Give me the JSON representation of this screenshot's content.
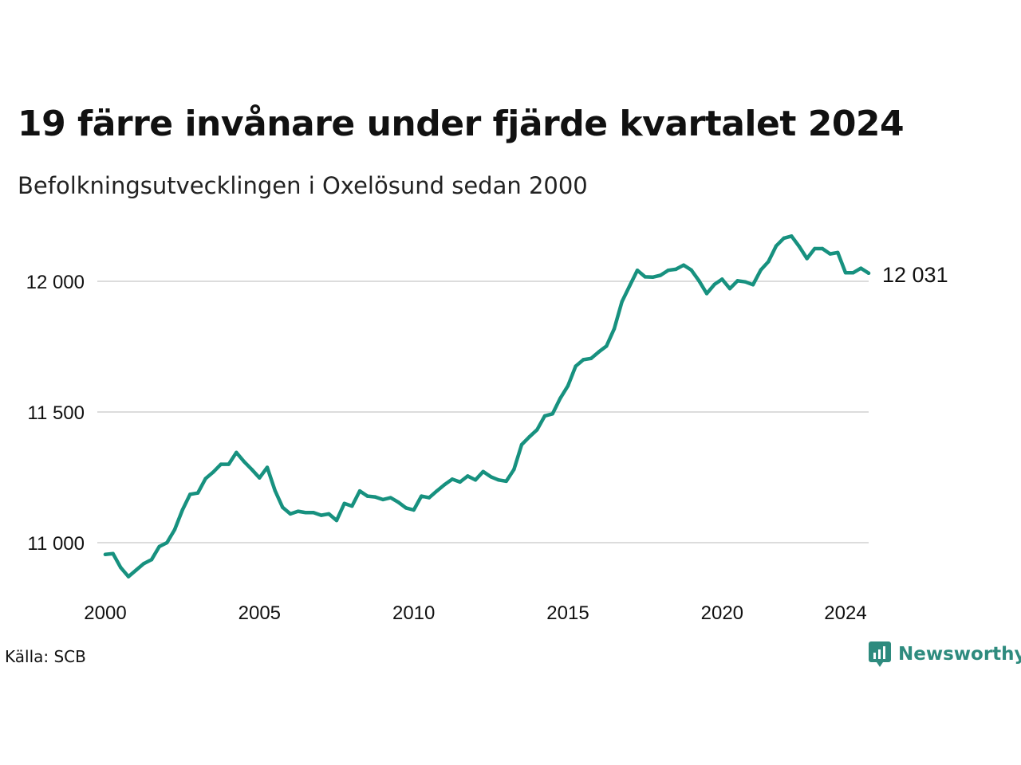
{
  "header": {
    "title": "19 färre invånare under fjärde kvartalet 2024",
    "subtitle": "Befolkningsutvecklingen i Oxelösund sedan 2000"
  },
  "footer": {
    "source": "Källa: SCB",
    "brand": "Newsworthy"
  },
  "colors": {
    "line": "#17917f",
    "grid": "#dcdcdc",
    "brand": "#2e8b7e"
  },
  "chart_data": {
    "type": "line",
    "title": "19 färre invånare under fjärde kvartalet 2024",
    "subtitle": "Befolkningsutvecklingen i Oxelösund sedan 2000",
    "xlabel": "",
    "ylabel": "",
    "xlim": [
      2000.0,
      2024.75
    ],
    "ylim": [
      10800,
      12250
    ],
    "grid": true,
    "y_ticks": [
      {
        "value": 11000,
        "label": "11 000"
      },
      {
        "value": 11500,
        "label": "11 500"
      },
      {
        "value": 12000,
        "label": "12 000"
      }
    ],
    "x_ticks": [
      {
        "value": 2000,
        "label": "2000"
      },
      {
        "value": 2005,
        "label": "2005"
      },
      {
        "value": 2010,
        "label": "2010"
      },
      {
        "value": 2015,
        "label": "2015"
      },
      {
        "value": 2020,
        "label": "2020"
      },
      {
        "value": 2024,
        "label": "2024"
      }
    ],
    "end_label": "12 031",
    "series": [
      {
        "x": [
          2000.0,
          2000.25,
          2000.5,
          2000.75,
          2001.0,
          2001.25,
          2001.5,
          2001.75,
          2002.0,
          2002.25,
          2002.5,
          2002.75,
          2003.0,
          2003.25,
          2003.5,
          2003.75,
          2004.0,
          2004.25,
          2004.5,
          2004.75,
          2005.0,
          2005.25,
          2005.5,
          2005.75,
          2006.0,
          2006.25,
          2006.5,
          2006.75,
          2007.0,
          2007.25,
          2007.5,
          2007.75,
          2008.0,
          2008.25,
          2008.5,
          2008.75,
          2009.0,
          2009.25,
          2009.5,
          2009.75,
          2010.0,
          2010.25,
          2010.5,
          2010.75,
          2011.0,
          2011.25,
          2011.5,
          2011.75,
          2012.0,
          2012.25,
          2012.5,
          2012.75,
          2013.0,
          2013.25,
          2013.5,
          2013.75,
          2014.0,
          2014.25,
          2014.5,
          2014.75,
          2015.0,
          2015.25,
          2015.5,
          2015.75,
          2016.0,
          2016.25,
          2016.5,
          2016.75,
          2017.0,
          2017.25,
          2017.5,
          2017.75,
          2018.0,
          2018.25,
          2018.5,
          2018.75,
          2019.0,
          2019.25,
          2019.5,
          2019.75,
          2020.0,
          2020.25,
          2020.5,
          2020.75,
          2021.0,
          2021.25,
          2021.5,
          2021.75,
          2022.0,
          2022.25,
          2022.5,
          2022.75,
          2023.0,
          2023.25,
          2023.5,
          2023.75,
          2024.0,
          2024.25,
          2024.5,
          2024.75
        ],
        "values": [
          10955,
          10958,
          10905,
          10870,
          10895,
          10920,
          10935,
          10985,
          11000,
          11050,
          11125,
          11185,
          11190,
          11245,
          11270,
          11300,
          11300,
          11345,
          11310,
          11280,
          11248,
          11288,
          11200,
          11135,
          11110,
          11120,
          11115,
          11115,
          11105,
          11110,
          11085,
          11150,
          11140,
          11198,
          11178,
          11175,
          11165,
          11172,
          11155,
          11133,
          11125,
          11178,
          11172,
          11198,
          11222,
          11243,
          11232,
          11255,
          11240,
          11272,
          11252,
          11240,
          11235,
          11280,
          11375,
          11405,
          11432,
          11485,
          11493,
          11552,
          11600,
          11675,
          11700,
          11705,
          11730,
          11752,
          11818,
          11922,
          11982,
          12042,
          12017,
          12016,
          12023,
          12042,
          12046,
          12062,
          12043,
          12002,
          11953,
          11988,
          12008,
          11972,
          12002,
          11998,
          11987,
          12043,
          12075,
          12135,
          12165,
          12173,
          12133,
          12087,
          12125,
          12125,
          12105,
          12110,
          12033,
          12033,
          12050,
          12031
        ]
      }
    ]
  }
}
